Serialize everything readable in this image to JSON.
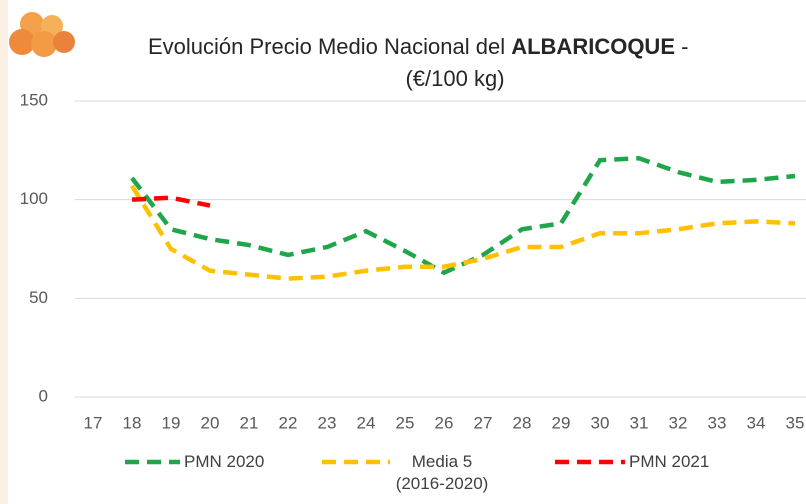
{
  "chart_data": {
    "type": "line",
    "title": {
      "text": "Evolución Precio Medio Nacional del",
      "bold": "ALBARICOQUE",
      "suffix": "-",
      "unit": "(€/100 kg)"
    },
    "categories": [
      "17",
      "18",
      "19",
      "20",
      "21",
      "22",
      "23",
      "24",
      "25",
      "26",
      "27",
      "28",
      "29",
      "30",
      "31",
      "32",
      "33",
      "34",
      "35"
    ],
    "series": [
      {
        "name": "PMN 2020",
        "color": "#1fa64a",
        "values": [
          null,
          111,
          85,
          80,
          77,
          72,
          76,
          84,
          74,
          63,
          72,
          85,
          88,
          120,
          121,
          114,
          109,
          110,
          112
        ]
      },
      {
        "name": "Media 5 (2016-2020)",
        "color": "#ffc000",
        "values": [
          null,
          107,
          75,
          64,
          62,
          60,
          61,
          64,
          66,
          66,
          70,
          76,
          76,
          83,
          83,
          85,
          88,
          89,
          88
        ]
      },
      {
        "name": "PMN 2021",
        "color": "#ff0000",
        "values": [
          null,
          100,
          101,
          97,
          null,
          null,
          null,
          null,
          null,
          null,
          null,
          null,
          null,
          null,
          null,
          null,
          null,
          null,
          null
        ]
      }
    ],
    "ylim": [
      0,
      150
    ],
    "yticks": [
      0,
      50,
      100,
      150
    ],
    "grid": true
  }
}
